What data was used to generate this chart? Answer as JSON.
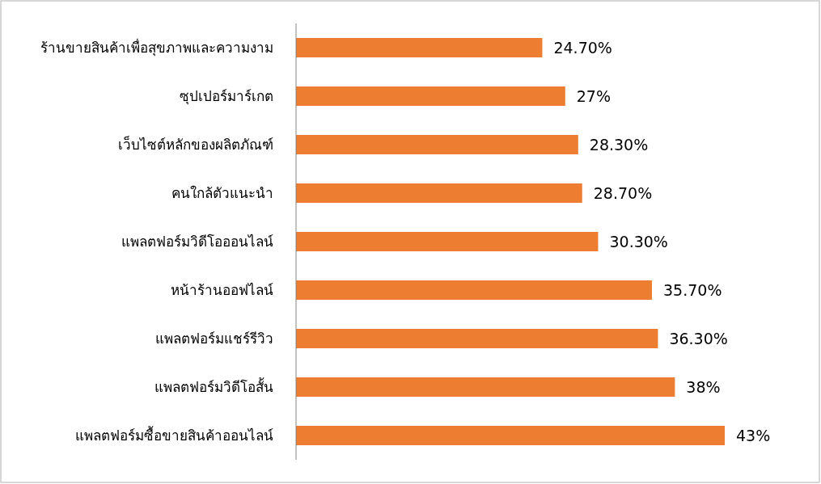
{
  "chart_data": {
    "type": "bar",
    "orientation": "horizontal",
    "color": "#ed7d31",
    "categories": [
      "ร้านขายสินค้าเพื่อสุขภาพและความงาม",
      "ซุปเปอร์มาร์เกต",
      "เว็บไซต์หลักของผลิตภัณฑ์",
      "คนใกล้ตัวแนะนำ",
      "แพลตฟอร์มวิดีโอออนไลน์",
      "หน้าร้านออฟไลน์",
      "แพลตฟอร์มแชร์รีวิว",
      "แพลตฟอร์มวิดีโอสั้น",
      "แพลตฟอร์มซื้อขายสินค้าออนไลน์"
    ],
    "values": [
      24.7,
      27,
      28.3,
      28.7,
      30.3,
      35.7,
      36.3,
      38,
      43
    ],
    "value_labels": [
      "24.70%",
      "27%",
      "28.30%",
      "28.70%",
      "30.30%",
      "35.70%",
      "36.30%",
      "38%",
      "43%"
    ]
  }
}
